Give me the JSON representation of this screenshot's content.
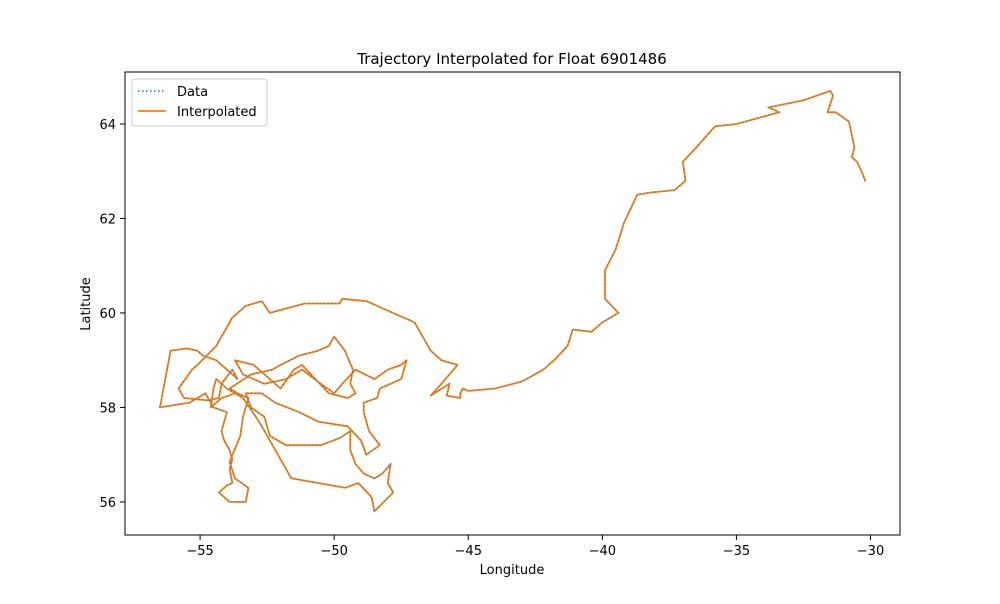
{
  "chart_data": {
    "type": "line",
    "title": "Trajectory Interpolated for Float 6901486",
    "xlabel": "Longitude",
    "ylabel": "Latitude",
    "xlim": [
      -57.8,
      -28.9
    ],
    "ylim": [
      55.3,
      65.1
    ],
    "xticks": [
      -55,
      -50,
      -45,
      -40,
      -35,
      -30
    ],
    "xtick_labels": [
      "−55",
      "−50",
      "−45",
      "−40",
      "−35",
      "−30"
    ],
    "yticks": [
      56,
      58,
      60,
      62,
      64
    ],
    "ytick_labels": [
      "56",
      "58",
      "60",
      "62",
      "64"
    ],
    "grid": false,
    "legend_position": "top-left",
    "series": [
      {
        "name": "Data",
        "color": "#1f77b4",
        "style": "dotted"
      },
      {
        "name": "Interpolated",
        "color": "#ff7f0e",
        "style": "solid"
      }
    ],
    "trajectory": [
      [
        -30.2,
        62.8
      ],
      [
        -30.3,
        62.95
      ],
      [
        -30.5,
        63.2
      ],
      [
        -30.7,
        63.3
      ],
      [
        -30.6,
        63.5
      ],
      [
        -30.8,
        64.05
      ],
      [
        -31.3,
        64.25
      ],
      [
        -31.6,
        64.25
      ],
      [
        -31.4,
        64.6
      ],
      [
        -31.5,
        64.7
      ],
      [
        -32.5,
        64.5
      ],
      [
        -33.8,
        64.35
      ],
      [
        -33.4,
        64.25
      ],
      [
        -35.0,
        64.0
      ],
      [
        -35.8,
        63.95
      ],
      [
        -36.5,
        63.5
      ],
      [
        -37.0,
        63.2
      ],
      [
        -36.9,
        62.8
      ],
      [
        -37.3,
        62.6
      ],
      [
        -38.2,
        62.55
      ],
      [
        -38.7,
        62.5
      ],
      [
        -39.2,
        61.9
      ],
      [
        -39.5,
        61.35
      ],
      [
        -39.9,
        60.9
      ],
      [
        -39.9,
        60.3
      ],
      [
        -39.4,
        60.0
      ],
      [
        -40.0,
        59.8
      ],
      [
        -40.4,
        59.6
      ],
      [
        -41.1,
        59.65
      ],
      [
        -41.3,
        59.3
      ],
      [
        -41.8,
        59.0
      ],
      [
        -42.2,
        58.8
      ],
      [
        -43.0,
        58.55
      ],
      [
        -44.0,
        58.4
      ],
      [
        -45.0,
        58.35
      ],
      [
        -45.2,
        58.4
      ],
      [
        -45.3,
        58.3
      ],
      [
        -45.3,
        58.2
      ],
      [
        -45.8,
        58.25
      ],
      [
        -45.7,
        58.5
      ],
      [
        -46.4,
        58.25
      ],
      [
        -46.0,
        58.5
      ],
      [
        -45.4,
        58.9
      ],
      [
        -46.0,
        59.0
      ],
      [
        -46.4,
        59.2
      ],
      [
        -46.8,
        59.6
      ],
      [
        -47.0,
        59.8
      ],
      [
        -48.2,
        60.1
      ],
      [
        -48.8,
        60.25
      ],
      [
        -49.7,
        60.3
      ],
      [
        -49.8,
        60.2
      ],
      [
        -51.1,
        60.2
      ],
      [
        -52.4,
        60.0
      ],
      [
        -52.7,
        60.25
      ],
      [
        -53.3,
        60.15
      ],
      [
        -53.8,
        59.9
      ],
      [
        -54.4,
        59.3
      ],
      [
        -55.1,
        58.9
      ],
      [
        -55.3,
        58.8
      ],
      [
        -55.8,
        58.4
      ],
      [
        -55.6,
        58.2
      ],
      [
        -54.7,
        58.15
      ],
      [
        -54.3,
        58.2
      ],
      [
        -54.2,
        58.5
      ],
      [
        -53.8,
        58.8
      ],
      [
        -53.6,
        58.6
      ],
      [
        -54.4,
        59.0
      ],
      [
        -54.9,
        59.1
      ],
      [
        -55.1,
        59.2
      ],
      [
        -55.5,
        59.25
      ],
      [
        -56.1,
        59.2
      ],
      [
        -56.2,
        58.9
      ],
      [
        -56.5,
        58.0
      ],
      [
        -55.4,
        58.1
      ],
      [
        -54.8,
        58.3
      ],
      [
        -54.5,
        58.0
      ],
      [
        -54.0,
        57.9
      ],
      [
        -54.2,
        57.5
      ],
      [
        -54.1,
        57.3
      ],
      [
        -53.9,
        57.1
      ],
      [
        -53.8,
        56.9
      ],
      [
        -53.9,
        56.7
      ],
      [
        -53.8,
        56.4
      ],
      [
        -54.0,
        56.35
      ],
      [
        -54.3,
        56.2
      ],
      [
        -53.9,
        56.0
      ],
      [
        -53.3,
        56.0
      ],
      [
        -53.2,
        56.3
      ],
      [
        -53.7,
        56.5
      ],
      [
        -53.9,
        56.85
      ],
      [
        -53.5,
        57.4
      ],
      [
        -53.4,
        57.8
      ],
      [
        -53.2,
        58.2
      ],
      [
        -53.6,
        58.3
      ],
      [
        -53.9,
        58.4
      ],
      [
        -53.1,
        58.7
      ],
      [
        -52.3,
        58.8
      ],
      [
        -52.0,
        58.9
      ],
      [
        -51.3,
        59.1
      ],
      [
        -50.6,
        59.2
      ],
      [
        -50.2,
        59.3
      ],
      [
        -50.0,
        59.5
      ],
      [
        -49.6,
        59.2
      ],
      [
        -49.3,
        58.8
      ],
      [
        -49.4,
        58.5
      ],
      [
        -49.2,
        58.3
      ],
      [
        -49.5,
        58.2
      ],
      [
        -50.2,
        58.3
      ],
      [
        -50.7,
        58.6
      ],
      [
        -51.2,
        58.9
      ],
      [
        -51.5,
        58.8
      ],
      [
        -52.0,
        58.4
      ],
      [
        -52.4,
        58.6
      ],
      [
        -53.0,
        58.9
      ],
      [
        -53.7,
        59.0
      ],
      [
        -53.4,
        58.7
      ],
      [
        -52.6,
        58.5
      ],
      [
        -51.8,
        58.6
      ],
      [
        -51.2,
        58.8
      ],
      [
        -50.5,
        58.5
      ],
      [
        -50.0,
        58.3
      ],
      [
        -49.7,
        58.5
      ],
      [
        -49.2,
        58.8
      ],
      [
        -48.5,
        58.6
      ],
      [
        -48.0,
        58.8
      ],
      [
        -47.5,
        58.9
      ],
      [
        -47.3,
        59.0
      ],
      [
        -47.5,
        58.6
      ],
      [
        -48.3,
        58.4
      ],
      [
        -48.4,
        58.2
      ],
      [
        -48.9,
        58.1
      ],
      [
        -48.9,
        57.9
      ],
      [
        -48.7,
        57.5
      ],
      [
        -48.3,
        57.2
      ],
      [
        -48.8,
        57.0
      ],
      [
        -49.0,
        57.3
      ],
      [
        -49.5,
        57.6
      ],
      [
        -50.6,
        57.7
      ],
      [
        -51.3,
        57.9
      ],
      [
        -52.2,
        58.1
      ],
      [
        -52.7,
        58.3
      ],
      [
        -53.3,
        58.3
      ],
      [
        -53.1,
        58.0
      ],
      [
        -52.6,
        57.8
      ],
      [
        -52.4,
        57.4
      ],
      [
        -51.8,
        57.2
      ],
      [
        -50.5,
        57.2
      ],
      [
        -49.8,
        57.35
      ],
      [
        -49.4,
        57.5
      ],
      [
        -49.4,
        57.1
      ],
      [
        -49.2,
        56.8
      ],
      [
        -48.9,
        56.6
      ],
      [
        -48.5,
        56.5
      ],
      [
        -48.2,
        56.6
      ],
      [
        -47.9,
        56.8
      ],
      [
        -48.0,
        56.4
      ],
      [
        -47.8,
        56.2
      ],
      [
        -48.5,
        55.8
      ],
      [
        -48.6,
        56.1
      ],
      [
        -49.1,
        56.4
      ],
      [
        -49.6,
        56.3
      ],
      [
        -50.6,
        56.4
      ],
      [
        -51.6,
        56.5
      ],
      [
        -52.1,
        57.0
      ],
      [
        -52.8,
        57.7
      ],
      [
        -53.4,
        58.2
      ],
      [
        -54.0,
        58.4
      ],
      [
        -54.4,
        58.6
      ],
      [
        -54.5,
        58.4
      ],
      [
        -54.6,
        58.0
      ],
      [
        -54.2,
        58.2
      ],
      [
        -53.7,
        58.3
      ]
    ]
  }
}
